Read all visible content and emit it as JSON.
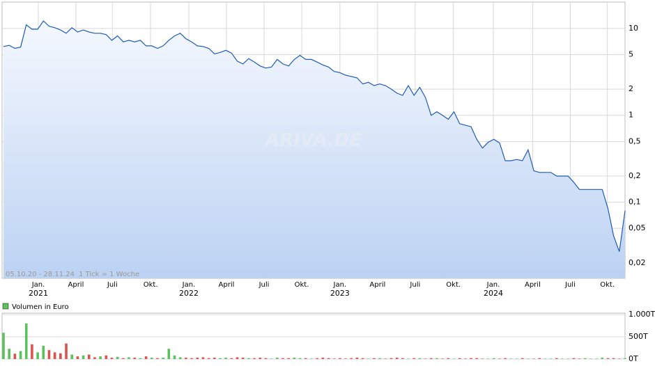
{
  "chart_data": [
    {
      "type": "line",
      "log_scale": true,
      "grid": true,
      "watermark": "ARIVA.DE",
      "range_note": "05.10.20 - 28.11.24",
      "tick_note": "1 Tick = 1 Woche",
      "xlim": [
        0,
        109
      ],
      "ylim": [
        0.0133,
        20.1
      ],
      "yticks": [
        10,
        5,
        2,
        1,
        {
          "value": 0.5,
          "label": "0,5"
        },
        {
          "value": 0.2,
          "label": "0,2"
        },
        {
          "value": 0.1,
          "label": "0,1"
        },
        {
          "value": 0.05,
          "label": "0,05"
        },
        {
          "value": 0.02,
          "label": "0,02"
        }
      ],
      "xticks": [
        {
          "value": 6.11,
          "label": "Jan."
        },
        {
          "value": 12.7,
          "label": "April"
        },
        {
          "value": 19.1,
          "label": "Juli"
        },
        {
          "value": 25.8,
          "label": "Okt."
        },
        {
          "value": 32.5,
          "label": "Jan."
        },
        {
          "value": 39.1,
          "label": "April"
        },
        {
          "value": 45.7,
          "label": "Juli"
        },
        {
          "value": 52.3,
          "label": "Okt."
        },
        {
          "value": 59.0,
          "label": "Jan."
        },
        {
          "value": 65.6,
          "label": "April"
        },
        {
          "value": 72.2,
          "label": "Juli"
        },
        {
          "value": 78.9,
          "label": "Okt."
        },
        {
          "value": 85.9,
          "label": "Jan."
        },
        {
          "value": 92.8,
          "label": "April"
        },
        {
          "value": 99.4,
          "label": "Juli"
        },
        {
          "value": 105.9,
          "label": "Okt."
        }
      ],
      "xtick_years": [
        {
          "value": 6.11,
          "label": "2021"
        },
        {
          "value": 32.5,
          "label": "2022"
        },
        {
          "value": 59.0,
          "label": "2023"
        },
        {
          "value": 85.9,
          "label": "2024"
        }
      ],
      "color": "#1f5bb5",
      "fill_top": "#f4f8fe",
      "fill_bottom": "#bcd2f3",
      "values": [
        6.2,
        6.4,
        5.9,
        6.1,
        11,
        9.8,
        9.8,
        12.2,
        10.6,
        10.2,
        9.6,
        8.8,
        10.2,
        9.1,
        9.6,
        9.1,
        8.8,
        8.8,
        8.5,
        7.3,
        8.2,
        7.0,
        7.3,
        7.0,
        7.3,
        6.3,
        6.3,
        5.9,
        6.3,
        7.3,
        8.2,
        8.8,
        7.6,
        7.0,
        6.3,
        6.2,
        5.9,
        5.1,
        5.3,
        5.6,
        5.2,
        4.2,
        3.9,
        4.5,
        4.1,
        3.7,
        3.5,
        3.6,
        4.4,
        3.9,
        3.7,
        4.4,
        4.9,
        4.4,
        4.4,
        4.1,
        3.8,
        3.6,
        3.2,
        3.1,
        2.9,
        2.8,
        2.7,
        2.3,
        2.4,
        2.2,
        2.3,
        2.2,
        2.0,
        1.8,
        1.7,
        2.2,
        1.7,
        2.1,
        1.6,
        1.0,
        1.1,
        1.0,
        0.9,
        1.1,
        0.8,
        0.77,
        0.74,
        0.53,
        0.42,
        0.49,
        0.53,
        0.48,
        0.3,
        0.3,
        0.31,
        0.3,
        0.4,
        0.23,
        0.22,
        0.22,
        0.22,
        0.2,
        0.2,
        0.2,
        0.17,
        0.14,
        0.14,
        0.14,
        0.14,
        0.14,
        0.085,
        0.041,
        0.027,
        0.08
      ]
    },
    {
      "type": "bar",
      "legend": "Volumen in Euro",
      "legend_color": "#5cc05c",
      "up_color": "#5cc05c",
      "down_color": "#d9534f",
      "grid": true,
      "xlim": [
        0,
        109
      ],
      "ylim": [
        0,
        1000
      ],
      "yticks": [
        {
          "value": 1000,
          "label": "1.000T"
        },
        {
          "value": 500,
          "label": "500T"
        },
        {
          "value": 0,
          "label": "0T"
        }
      ],
      "values": [
        590,
        230,
        120,
        180,
        800,
        330,
        150,
        300,
        200,
        150,
        130,
        350,
        100,
        60,
        80,
        100,
        40,
        60,
        80,
        30,
        50,
        20,
        40,
        30,
        20,
        60,
        30,
        20,
        30,
        230,
        80,
        40,
        30,
        20,
        30,
        40,
        20,
        30,
        20,
        30,
        20,
        40,
        30,
        20,
        20,
        30,
        20,
        10,
        30,
        20,
        20,
        30,
        20,
        20,
        10,
        20,
        30,
        20,
        10,
        20,
        10,
        20,
        30,
        20,
        10,
        20,
        20,
        10,
        20,
        30,
        20,
        10,
        20,
        20,
        10,
        20,
        20,
        10,
        20,
        10,
        20,
        10,
        20,
        20,
        10,
        10,
        20,
        10,
        20,
        10,
        10,
        20,
        10,
        10,
        20,
        10,
        10,
        20,
        10,
        10,
        20,
        10,
        20,
        10,
        10,
        30,
        20,
        20,
        10,
        20
      ]
    }
  ]
}
